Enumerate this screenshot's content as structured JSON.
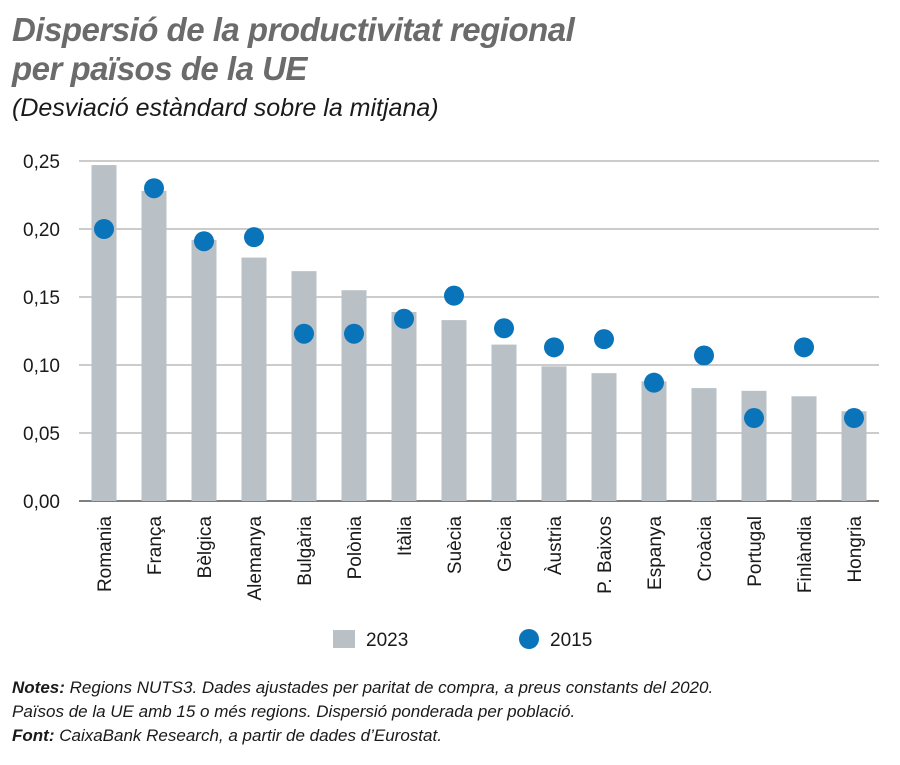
{
  "title_line1": "Dispersió de la productivitat regional",
  "title_line2": "per països de la UE",
  "subtitle": "(Desviació estàndard sobre la mitjana)",
  "notes": {
    "label": "Notes:",
    "text1": "Regions NUTS3. Dades ajustades per paritat de compra, a preus constants del 2020.",
    "text2": "Països de la UE amb 15 o més regions. Dispersió ponderada per població.",
    "source_label": "Font:",
    "source_text": "CaixaBank Research, a partir de dades d’Eurostat."
  },
  "chart_data": {
    "type": "bar",
    "categories": [
      "Romania",
      "França",
      "Bèlgica",
      "Alemanya",
      "Bulgària",
      "Polònia",
      "Itàlia",
      "Suècia",
      "Grècia",
      "Àustria",
      "P. Baixos",
      "Espanya",
      "Croàcia",
      "Portugal",
      "Finlàndia",
      "Hongria"
    ],
    "series": [
      {
        "name": "2023",
        "kind": "bar",
        "color": "#b9c1c6",
        "values": [
          0.247,
          0.228,
          0.192,
          0.179,
          0.169,
          0.155,
          0.139,
          0.133,
          0.115,
          0.099,
          0.094,
          0.088,
          0.083,
          0.081,
          0.077,
          0.066
        ]
      },
      {
        "name": "2015",
        "kind": "point",
        "color": "#0a74bb",
        "values": [
          0.2,
          0.23,
          0.191,
          0.194,
          0.123,
          0.123,
          0.134,
          0.151,
          0.127,
          0.113,
          0.119,
          0.087,
          0.107,
          0.061,
          0.113,
          0.061
        ]
      }
    ],
    "yticks": [
      "0,00",
      "0,05",
      "0,10",
      "0,15",
      "0,20",
      "0,25"
    ],
    "ytick_values": [
      0,
      0.05,
      0.1,
      0.15,
      0.2,
      0.25
    ],
    "ylim": [
      0,
      0.25
    ],
    "grid": true,
    "legend_position": "bottom"
  }
}
